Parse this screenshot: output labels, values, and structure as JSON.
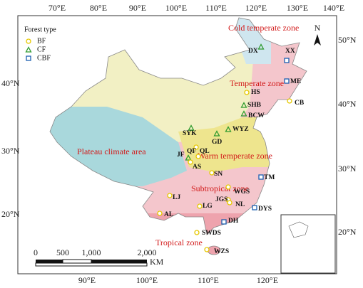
{
  "axes": {
    "top": [
      "70°E",
      "80°E",
      "90°E",
      "100°E",
      "110°E",
      "120°E",
      "130°E",
      "140°E"
    ],
    "bottom": [
      "90°E",
      "100°E",
      "110°E",
      "120°E"
    ],
    "left": [
      "40°N",
      "30°N",
      "20°N"
    ],
    "right": [
      "50°N",
      "40°N",
      "30°N",
      "20°N"
    ]
  },
  "legend": {
    "title": "Forest type",
    "items": [
      "BF",
      "CF",
      "CBF"
    ]
  },
  "zones": [
    "Cold temperate zone",
    "Temperate zone",
    "Warm temperate zone",
    "Plateau climate area",
    "Subtropical zone",
    "Tropical zone"
  ],
  "sites": {
    "labels": [
      "DX",
      "XX",
      "ME",
      "HS",
      "CB",
      "SHB",
      "BCW",
      "WYZ",
      "SYK",
      "GD",
      "QF",
      "JF",
      "QL",
      "AS",
      "SN",
      "TM",
      "LJ",
      "WGS",
      "JGS",
      "NL",
      "DYS",
      "AL",
      "LG",
      "DH",
      "SWDS",
      "WZS"
    ],
    "types": [
      "CF",
      "CBF",
      "CBF",
      "BF",
      "BF",
      "CF",
      "CF",
      "CF",
      "CF",
      "CF",
      "BF",
      "CF",
      "BF",
      "BF",
      "BF",
      "CBF",
      "BF",
      "BF",
      "BF",
      "BF",
      "CBF",
      "BF",
      "BF",
      "CBF",
      "BF",
      "BF"
    ]
  },
  "scale_bar": {
    "labels": [
      "0",
      "500",
      "1,000",
      "2,000"
    ],
    "unit": "KM"
  },
  "north": "N"
}
